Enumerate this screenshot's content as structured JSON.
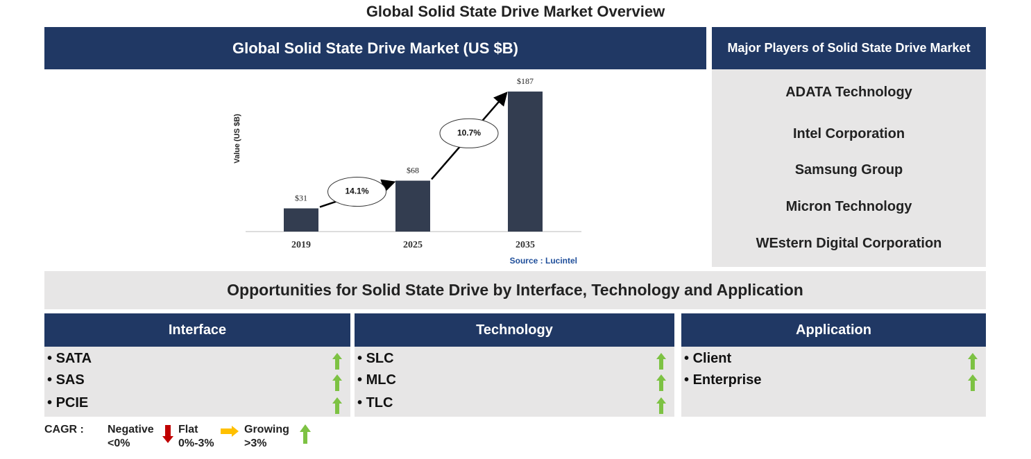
{
  "title": "Global Solid State Drive Market Overview",
  "chart_panel_title": "Global Solid State Drive Market (US $B)",
  "chart_data": {
    "type": "bar",
    "ylabel": "Value (US $B)",
    "categories": [
      "2019",
      "2025",
      "2035"
    ],
    "values": [
      31,
      68,
      187
    ],
    "value_labels": [
      "$31",
      "$68",
      "$187"
    ],
    "color": "#333d50",
    "ylim": [
      0,
      200
    ],
    "growth_labels": [
      "14.1%",
      "10.7%"
    ],
    "source": "Source : Lucintel"
  },
  "players": {
    "title": "Major Players of Solid State Drive Market",
    "items": [
      "ADATA Technology",
      "Intel Corporation",
      "Samsung Group",
      "Micron Technology",
      "WEstern Digital Corporation"
    ]
  },
  "opportunities": {
    "title": "Opportunities for Solid State Drive by Interface, Technology and Application",
    "columns": [
      {
        "title": "Interface",
        "items": [
          "SATA",
          "SAS",
          "PCIE"
        ]
      },
      {
        "title": "Technology",
        "items": [
          "SLC",
          "MLC",
          "TLC"
        ]
      },
      {
        "title": "Application",
        "items": [
          "Client",
          "Enterprise"
        ]
      }
    ]
  },
  "legend": {
    "label": "CAGR :",
    "items": [
      {
        "name": "Negative",
        "range": "<0%"
      },
      {
        "name": "Flat",
        "range": "0%-3%"
      },
      {
        "name": "Growing",
        "range": ">3%"
      }
    ]
  }
}
